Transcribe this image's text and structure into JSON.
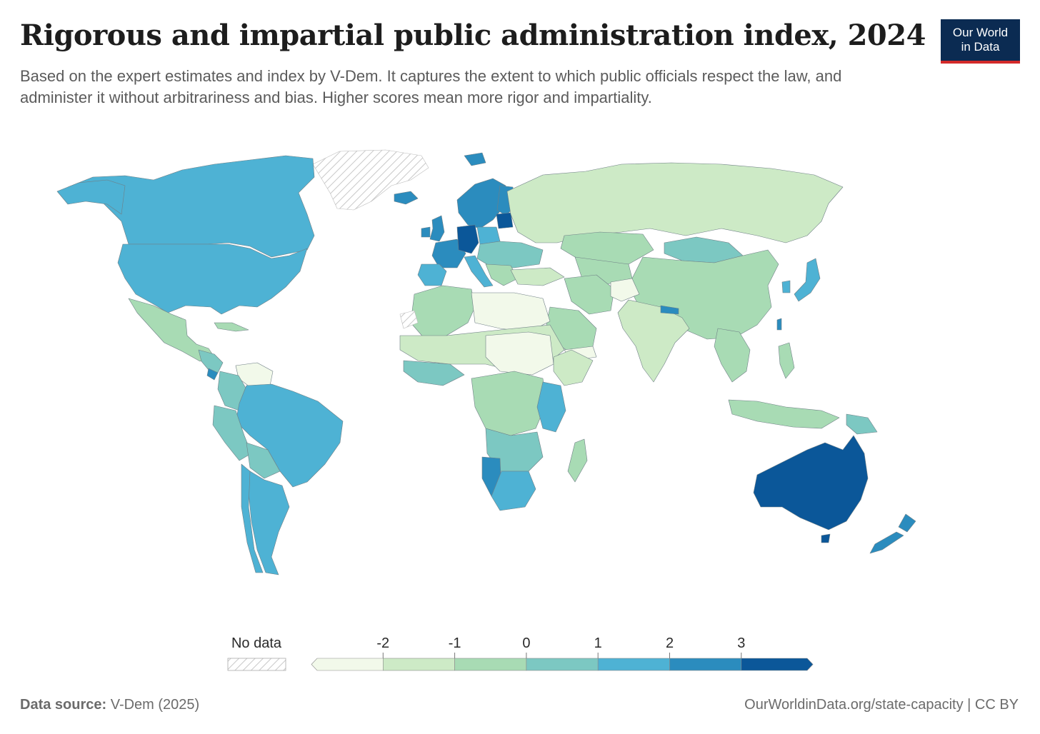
{
  "header": {
    "title": "Rigorous and impartial public administration index, 2024",
    "subtitle": "Based on the expert estimates and index by V-Dem. It captures the extent to which public officials respect the law, and administer it without arbitrariness and bias. Higher scores mean more rigor and impartiality.",
    "logo_line1": "Our World",
    "logo_line2": "in Data"
  },
  "legend": {
    "no_data_label": "No data",
    "ticks": [
      "-2",
      "-1",
      "0",
      "1",
      "2",
      "3"
    ],
    "colors": [
      "#f2f9ea",
      "#cdeac6",
      "#a8dbb4",
      "#7cc8c2",
      "#4eb2d4",
      "#2b8cbe",
      "#0b5799"
    ]
  },
  "map_data": {
    "scale_min": -3,
    "scale_max": 4,
    "no_data_color": "#e8e8e8"
  },
  "footer": {
    "source_label": "Data source:",
    "source_value": "V-Dem (2025)",
    "url": "OurWorldinData.org/state-capacity | CC BY"
  }
}
